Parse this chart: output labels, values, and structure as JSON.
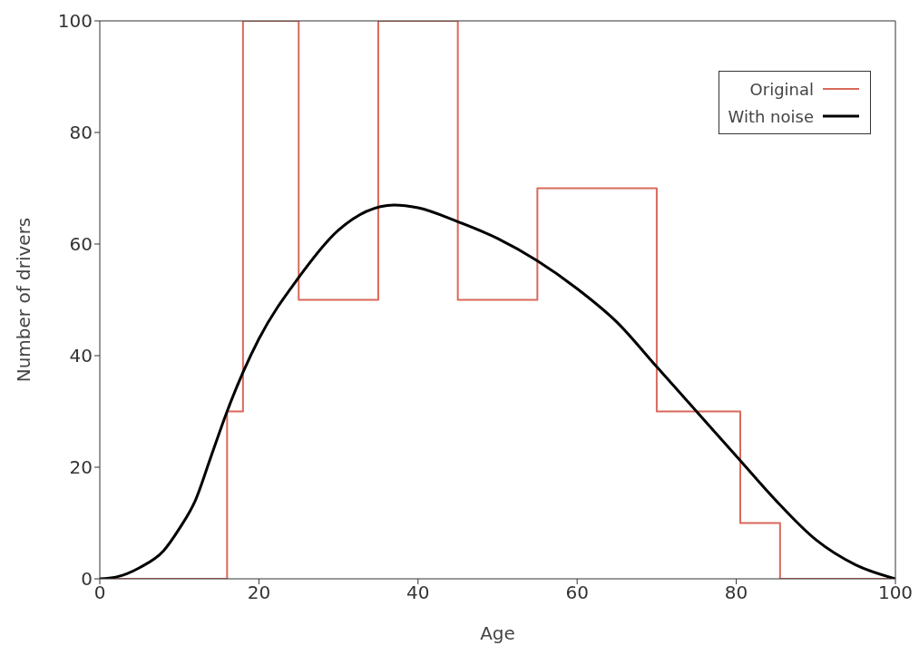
{
  "chart_data": {
    "type": "line",
    "xlabel": "Age",
    "ylabel": "Number of drivers",
    "xlim": [
      0,
      100
    ],
    "xticks": [
      0,
      20,
      40,
      60,
      80,
      100
    ],
    "ylim": [
      0,
      100
    ],
    "yticks": [
      0,
      20,
      40,
      60,
      80,
      100
    ],
    "grid": false,
    "legend": "top right",
    "marker": "none",
    "series": [
      {
        "name": "Original",
        "type": "step",
        "color": "#d9695a",
        "x": [
          0,
          16,
          18,
          25,
          35,
          45,
          55,
          70,
          80.5,
          85.5,
          100
        ],
        "values": [
          0,
          30,
          100,
          50,
          100,
          50,
          70,
          30,
          10,
          0,
          0
        ]
      },
      {
        "name": "With noise",
        "type": "line",
        "color": "#000000",
        "x": [
          0,
          2,
          5,
          8,
          10,
          12,
          14,
          16,
          18,
          20,
          25,
          30,
          37,
          40,
          45,
          50,
          55,
          60,
          65,
          70,
          75,
          80,
          85,
          90,
          95,
          100
        ],
        "values": [
          0,
          0.3,
          2,
          5,
          9,
          14,
          22,
          30,
          37,
          43,
          54,
          62.5,
          67,
          66.5,
          64,
          61,
          57,
          52,
          46,
          38,
          30,
          22,
          14,
          7,
          2.5,
          0
        ]
      }
    ]
  }
}
